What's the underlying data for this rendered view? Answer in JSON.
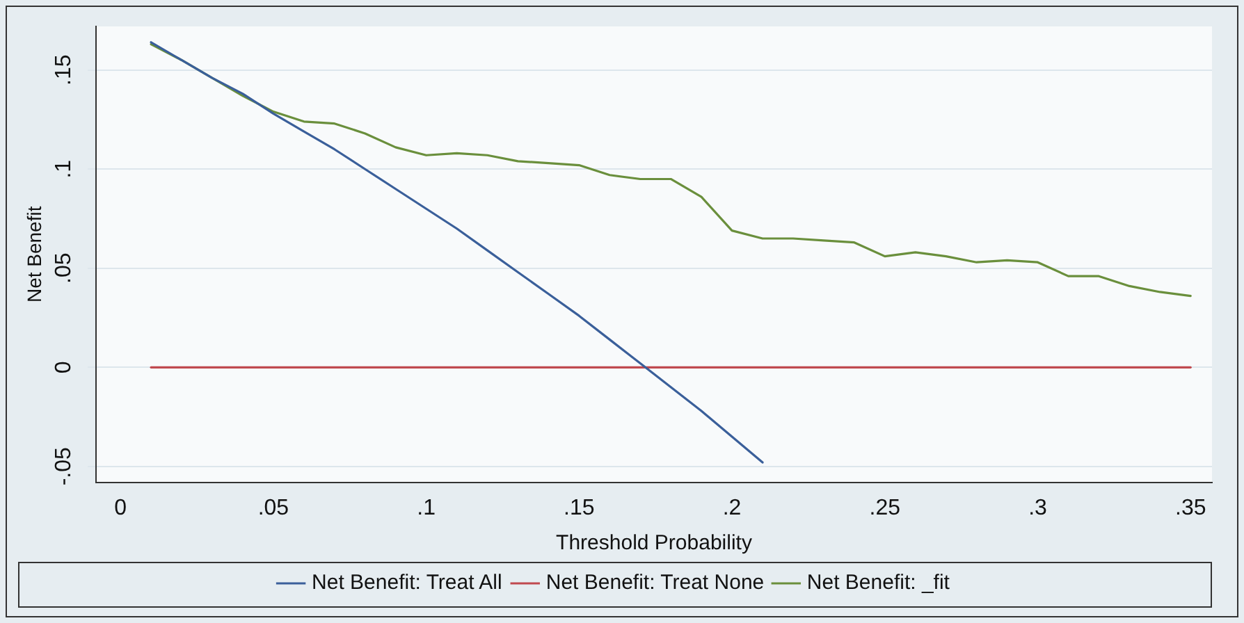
{
  "chart_data": {
    "type": "line",
    "xlabel": "Threshold Probability",
    "ylabel": "Net Benefit",
    "xlim": [
      -0.008,
      0.357
    ],
    "ylim": [
      -0.058,
      0.172
    ],
    "xticks": [
      0,
      {
        "value": 0.05,
        "label": ".05"
      },
      {
        "value": 0.1,
        "label": ".1"
      },
      {
        "value": 0.15,
        "label": ".15"
      },
      {
        "value": 0.2,
        "label": ".2"
      },
      {
        "value": 0.25,
        "label": ".25"
      },
      {
        "value": 0.3,
        "label": ".3"
      },
      {
        "value": 0.35,
        "label": ".35"
      }
    ],
    "yticks": [
      {
        "value": -0.05,
        "label": "-.05"
      },
      0,
      {
        "value": 0.05,
        "label": ".05"
      },
      {
        "value": 0.1,
        "label": ".1"
      },
      {
        "value": 0.15,
        "label": ".15"
      }
    ],
    "grid": "y",
    "legend": "bottom",
    "marker": "none",
    "line_style": "solid",
    "series": [
      {
        "name": "Net Benefit: Treat All",
        "color": "#3a5f9a",
        "x": [
          0.01,
          0.02,
          0.03,
          0.04,
          0.05,
          0.06,
          0.07,
          0.08,
          0.09,
          0.1,
          0.11,
          0.12,
          0.13,
          0.14,
          0.15,
          0.16,
          0.17,
          0.18,
          0.19,
          0.2,
          0.21
        ],
        "values": [
          0.164,
          0.155,
          0.146,
          0.138,
          0.128,
          0.119,
          0.11,
          0.1,
          0.09,
          0.08,
          0.07,
          0.059,
          0.048,
          0.037,
          0.026,
          0.014,
          0.002,
          -0.01,
          -0.022,
          -0.035,
          -0.048
        ]
      },
      {
        "name": "Net Benefit: Treat None",
        "color": "#c0494f",
        "x": [
          0.01,
          0.35
        ],
        "values": [
          0,
          0
        ]
      },
      {
        "name": "Net Benefit: _fit",
        "color": "#6a8f3c",
        "x": [
          0.01,
          0.02,
          0.03,
          0.04,
          0.05,
          0.06,
          0.07,
          0.08,
          0.09,
          0.1,
          0.11,
          0.12,
          0.13,
          0.14,
          0.15,
          0.16,
          0.17,
          0.18,
          0.19,
          0.2,
          0.21,
          0.22,
          0.23,
          0.24,
          0.25,
          0.26,
          0.27,
          0.28,
          0.29,
          0.3,
          0.31,
          0.32,
          0.33,
          0.34,
          0.35
        ],
        "values": [
          0.163,
          0.155,
          0.146,
          0.137,
          0.129,
          0.124,
          0.123,
          0.118,
          0.111,
          0.107,
          0.108,
          0.107,
          0.104,
          0.103,
          0.102,
          0.097,
          0.095,
          0.095,
          0.086,
          0.069,
          0.065,
          0.065,
          0.064,
          0.063,
          0.056,
          0.058,
          0.056,
          0.053,
          0.054,
          0.053,
          0.046,
          0.046,
          0.041,
          0.038,
          0.036
        ]
      }
    ]
  }
}
